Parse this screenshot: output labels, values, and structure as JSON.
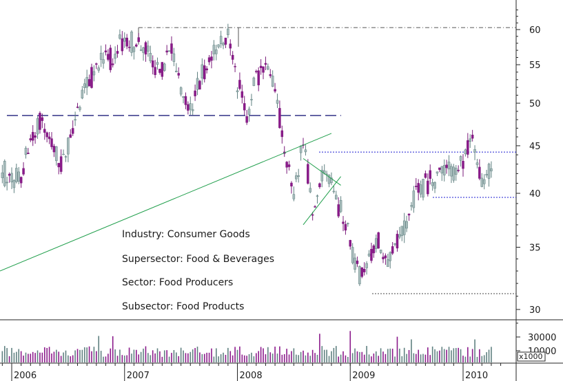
{
  "chart_data": {
    "type": "candlestick",
    "title": "",
    "price_axis": {
      "ticks": [
        30,
        35,
        40,
        45,
        50,
        55,
        60
      ],
      "ylim": [
        29,
        63
      ],
      "scale": "log"
    },
    "volume_axis": {
      "ticks": [
        10000,
        30000
      ],
      "tick_labels": [
        "10000",
        "30000"
      ],
      "unit_label": "x1000"
    },
    "x_ticks": [
      "2006",
      "2007",
      "2008",
      "2009",
      "2010"
    ],
    "x_range": [
      "2005-12",
      "2010-04"
    ],
    "annotations": {
      "industry": "Industry: Consumer Goods",
      "supersector": "Supersector: Food & Beverages",
      "sector": "Sector: Food Producers",
      "subsector": "Subsector: Food Products"
    },
    "reference_lines": [
      {
        "name": "high-2007-resistance",
        "style": "dash-dot",
        "value": 60.3
      },
      {
        "name": "support-2007-2008",
        "style": "long-dash",
        "value": 48.5
      },
      {
        "name": "range-top-2009-2010",
        "style": "dotted",
        "value": 44.3
      },
      {
        "name": "range-bottom-2009-2010",
        "style": "dotted",
        "value": 39.6
      },
      {
        "name": "low-2009",
        "style": "dotted",
        "value": 31.2
      }
    ],
    "trendlines": [
      {
        "name": "long-uptrend",
        "from": {
          "date": "2005-12",
          "price": 33.0
        },
        "to": {
          "date": "2008-11",
          "price": 46.4
        }
      },
      {
        "name": "triangle-upper",
        "from": {
          "date": "2008-08",
          "price": 43.6
        },
        "to": {
          "date": "2008-12",
          "price": 40.8
        }
      },
      {
        "name": "triangle-lower",
        "from": {
          "date": "2008-08",
          "price": 37.0
        },
        "to": {
          "date": "2008-12",
          "price": 41.7
        }
      }
    ],
    "price_path": [
      [
        "2005-12",
        42.0
      ],
      [
        "2006-02",
        41.5
      ],
      [
        "2006-03",
        46.0
      ],
      [
        "2006-04",
        47.5
      ],
      [
        "2006-05",
        46.5
      ],
      [
        "2006-06",
        42.5
      ],
      [
        "2006-07",
        45.0
      ],
      [
        "2006-08",
        49.0
      ],
      [
        "2006-09",
        52.0
      ],
      [
        "2006-10",
        55.0
      ],
      [
        "2006-11",
        56.0
      ],
      [
        "2006-12",
        55.5
      ],
      [
        "2007-01",
        59.0
      ],
      [
        "2007-02",
        57.5
      ],
      [
        "2007-03",
        58.0
      ],
      [
        "2007-04",
        55.0
      ],
      [
        "2007-05",
        54.0
      ],
      [
        "2007-06",
        57.0
      ],
      [
        "2007-07",
        52.0
      ],
      [
        "2007-08",
        49.5
      ],
      [
        "2007-09",
        53.0
      ],
      [
        "2007-10",
        56.0
      ],
      [
        "2007-11",
        57.5
      ],
      [
        "2007-12",
        59.5
      ],
      [
        "2008-01",
        52.5
      ],
      [
        "2008-02",
        48.5
      ],
      [
        "2008-03",
        53.5
      ],
      [
        "2008-04",
        54.5
      ],
      [
        "2008-05",
        52.5
      ],
      [
        "2008-06",
        44.0
      ],
      [
        "2008-07",
        39.5
      ],
      [
        "2008-08",
        45.5
      ],
      [
        "2008-09",
        38.5
      ],
      [
        "2008-10",
        42.0
      ],
      [
        "2008-11",
        40.5
      ],
      [
        "2008-12",
        38.5
      ],
      [
        "2009-01",
        35.5
      ],
      [
        "2009-02",
        32.5
      ],
      [
        "2009-03",
        34.0
      ],
      [
        "2009-04",
        35.5
      ],
      [
        "2009-05",
        33.5
      ],
      [
        "2009-06",
        35.5
      ],
      [
        "2009-07",
        37.0
      ],
      [
        "2009-08",
        40.0
      ],
      [
        "2009-09",
        41.0
      ],
      [
        "2009-10",
        41.5
      ],
      [
        "2009-11",
        42.5
      ],
      [
        "2009-12",
        42.0
      ],
      [
        "2010-01",
        43.5
      ],
      [
        "2010-02",
        46.0
      ],
      [
        "2010-03",
        41.0
      ],
      [
        "2010-04",
        42.5
      ]
    ],
    "grid": false
  }
}
